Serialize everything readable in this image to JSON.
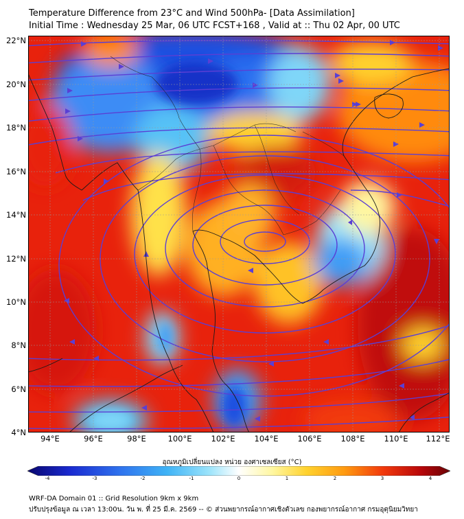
{
  "title": {
    "line1": "Temperature Difference from 23°C and Wind 500hPa- [Data Assimilation]",
    "line2": "Initial Time : Wednesday 25 Mar, 06 UTC FCST+168 , Valid at ::  Thu 02 Apr, 00 UTC"
  },
  "axes": {
    "lat_labels": [
      "22°N",
      "20°N",
      "18°N",
      "16°N",
      "14°N",
      "12°N",
      "10°N",
      "8°N",
      "6°N",
      "4°N"
    ],
    "lon_labels": [
      "94°E",
      "96°E",
      "98°E",
      "100°E",
      "102°E",
      "104°E",
      "106°E",
      "108°E",
      "110°E",
      "112°E"
    ],
    "lat_range": [
      4,
      22.2
    ],
    "lon_range": [
      93,
      112.5
    ]
  },
  "colorbar": {
    "title": "อุณหภูมิเปลี่ยนแปลง หน่วย องศาเซลเซียส (°C)",
    "ticks": [
      "-4",
      "-3",
      "-2",
      "-1",
      "0",
      "1",
      "2",
      "3",
      "4"
    ],
    "range": [
      -4,
      4
    ],
    "colors": [
      "#08066e",
      "#1a2ad0",
      "#2f73ee",
      "#3fb3f6",
      "#9ce4fb",
      "#ffffff",
      "#fff7a0",
      "#ffd22e",
      "#ff9a10",
      "#f23a0c",
      "#b8070a",
      "#6a0205"
    ]
  },
  "footer": {
    "line1": "WRF-DA Domain 01 :: Grid Resolution 9km x 9km",
    "line2": "ปรับปรุงข้อมูล ณ เวลา 13:00น. วัน พ. ที่ 25 มี.ค. 2569 -- © ส่วนพยากรณ์อากาศเชิงตัวเลข กองพยากรณ์อากาศ กรมอุตุนิยมวิทยา"
  },
  "colors": {
    "wind_line": "#5a3fd4",
    "coast_line": "#1a1a1a"
  }
}
